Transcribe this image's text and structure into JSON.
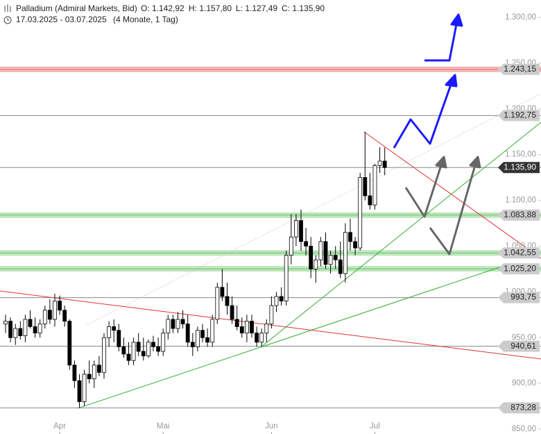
{
  "chart_data": {
    "type": "candlestick",
    "title": "Palladium (Admiral Markets, Bid)",
    "ohlc_labels": [
      "O: 1.142,92",
      "H: 1.157,80",
      "L: 1.127,49",
      "C: 1.135,90"
    ],
    "date_range": "17.03.2025 - 03.07.2025",
    "period": "(4 Monate, 1 Tag)",
    "open": [
      965,
      968,
      950,
      960,
      952,
      970,
      962,
      955,
      965,
      980,
      970,
      990,
      980,
      968,
      920,
      903,
      880,
      910,
      905,
      920,
      912,
      950,
      962,
      958,
      940,
      932,
      925,
      945,
      935,
      930,
      945,
      940,
      935,
      955,
      970,
      960,
      970,
      965,
      945,
      940,
      958,
      950,
      945,
      970,
      1005,
      995,
      985,
      970,
      962,
      955,
      968,
      955,
      945,
      955,
      965,
      985,
      995,
      990,
      1040,
      1060,
      1078,
      1055,
      1050,
      1025,
      1035,
      1055,
      1030,
      1040,
      1035,
      1020,
      1065,
      1055,
      1048,
      1125,
      1105,
      1095,
      1138,
      1142.92
    ],
    "high": [
      975,
      972,
      965,
      968,
      975,
      980,
      972,
      970,
      985,
      992,
      998,
      996,
      985,
      970,
      925,
      910,
      915,
      925,
      925,
      930,
      955,
      968,
      970,
      965,
      950,
      945,
      950,
      955,
      950,
      948,
      952,
      950,
      960,
      975,
      975,
      978,
      980,
      975,
      955,
      962,
      965,
      960,
      975,
      1010,
      1025,
      1010,
      995,
      985,
      972,
      975,
      975,
      962,
      960,
      970,
      995,
      1000,
      1005,
      1045,
      1085,
      1085,
      1090,
      1070,
      1060,
      1040,
      1060,
      1065,
      1045,
      1050,
      1055,
      1075,
      1080,
      1060,
      1130,
      1175,
      1130,
      1140,
      1158,
      1157.8
    ],
    "low": [
      955,
      945,
      942,
      948,
      945,
      960,
      950,
      950,
      960,
      965,
      962,
      975,
      962,
      915,
      895,
      873.28,
      875,
      900,
      895,
      908,
      905,
      940,
      945,
      935,
      928,
      920,
      920,
      930,
      925,
      928,
      935,
      930,
      930,
      948,
      955,
      955,
      960,
      940,
      930,
      935,
      945,
      940,
      940,
      965,
      990,
      975,
      965,
      958,
      950,
      945,
      950,
      940,
      940,
      945,
      960,
      978,
      985,
      985,
      1030,
      1050,
      1045,
      1040,
      1015,
      1010,
      1028,
      1025,
      1020,
      1025,
      1015,
      1010,
      1045,
      1040,
      1045,
      1100,
      1090,
      1090,
      1130,
      1127.49
    ],
    "close": [
      968,
      950,
      960,
      952,
      970,
      962,
      955,
      965,
      980,
      970,
      990,
      980,
      968,
      920,
      903,
      880,
      910,
      905,
      920,
      912,
      950,
      962,
      958,
      940,
      932,
      925,
      945,
      935,
      930,
      945,
      940,
      935,
      955,
      970,
      960,
      970,
      965,
      945,
      940,
      958,
      950,
      945,
      970,
      1005,
      995,
      985,
      970,
      962,
      955,
      968,
      955,
      945,
      955,
      965,
      985,
      995,
      990,
      1040,
      1060,
      1078,
      1055,
      1050,
      1025,
      1035,
      1055,
      1030,
      1040,
      1035,
      1020,
      1065,
      1055,
      1048,
      1125,
      1105,
      1095,
      1138,
      1142.92,
      1135.9
    ],
    "ylim": [
      850,
      1300
    ],
    "yticks": [
      {
        "value": 850,
        "label": "850,00"
      },
      {
        "value": 900,
        "label": "900,00"
      },
      {
        "value": 950,
        "label": "950,00"
      },
      {
        "value": 1000,
        "label": "1.000,00"
      },
      {
        "value": 1050,
        "label": "1.050,00"
      },
      {
        "value": 1100,
        "label": "1.100,00"
      },
      {
        "value": 1150,
        "label": "1.150,00"
      },
      {
        "value": 1200,
        "label": "1.200,00"
      },
      {
        "value": 1250,
        "label": "1.250,00"
      },
      {
        "value": 1300,
        "label": "1.300,00"
      }
    ],
    "xticks": [
      {
        "value": 11,
        "label": "Apr"
      },
      {
        "value": 32,
        "label": "Mai"
      },
      {
        "value": 54,
        "label": "Jun"
      },
      {
        "value": 75,
        "label": "Jul"
      }
    ],
    "levels": [
      {
        "value": 1243.15,
        "label": "1.243,15",
        "color": "#f2a0a0"
      },
      {
        "value": 1192.75,
        "label": "1.192,75",
        "color": "#888888"
      },
      {
        "value": 1135.9,
        "label": "1.135,90",
        "color": "#888888",
        "highlight": true
      },
      {
        "value": 1083.88,
        "label": "1.083,88",
        "color": "#a8dca8"
      },
      {
        "value": 1042.55,
        "label": "1.042,55",
        "color": "#a8dca8"
      },
      {
        "value": 1025.2,
        "label": "1.025,20",
        "color": "#a8dca8"
      },
      {
        "value": 993.75,
        "label": "993,75",
        "color": "#888888"
      },
      {
        "value": 940.61,
        "label": "940,61",
        "color": "#888888"
      },
      {
        "value": 873.28,
        "label": "873,28",
        "color": "#888888"
      }
    ]
  }
}
